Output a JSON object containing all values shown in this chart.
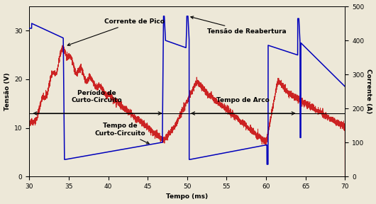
{
  "xlim": [
    30,
    70
  ],
  "ylim_voltage": [
    0,
    35
  ],
  "ylim_current": [
    0,
    500
  ],
  "xlabel": "Tempo (ms)",
  "ylabel_left": "Tensão (V)",
  "ylabel_right": "Corrente (A)",
  "bg_color": "#ede8d8",
  "voltage_color": "#0000bb",
  "current_color": "#cc2222",
  "reference_line_y": 13,
  "xticks": [
    30,
    35,
    40,
    45,
    50,
    55,
    60,
    65,
    70
  ],
  "yticks_left": [
    0,
    10,
    20,
    30
  ],
  "yticks_right": [
    0,
    100,
    200,
    300,
    400,
    500
  ]
}
